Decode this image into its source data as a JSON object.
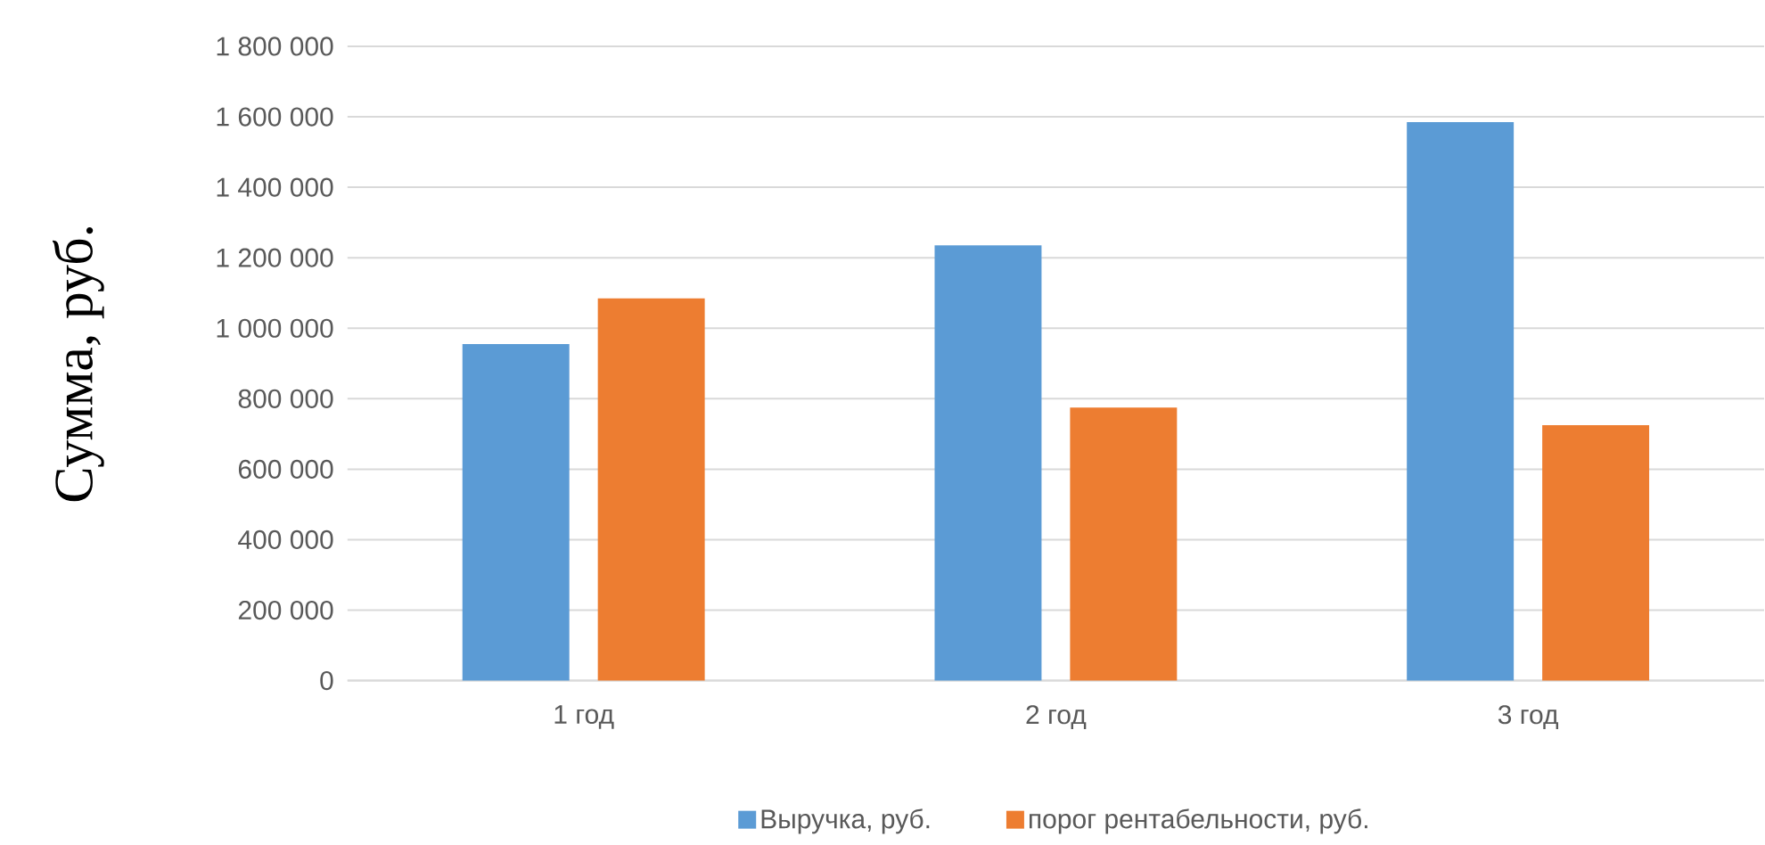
{
  "chart_data": {
    "type": "bar",
    "ylabel": "Сумма, руб.",
    "categories": [
      "1 год",
      "2 год",
      "3 год"
    ],
    "series": [
      {
        "name": "Выручка, руб.",
        "color": "#5b9bd5",
        "values": [
          955000,
          1235000,
          1585000
        ]
      },
      {
        "name": "порог рентабельности, руб.",
        "color": "#ed7d31",
        "values": [
          1085000,
          775000,
          725000
        ]
      }
    ],
    "ylim": [
      0,
      1800000
    ],
    "yticks": [
      {
        "value": 0,
        "label": "0"
      },
      {
        "value": 200000,
        "label": "200 000"
      },
      {
        "value": 400000,
        "label": "400 000"
      },
      {
        "value": 600000,
        "label": "600 000"
      },
      {
        "value": 800000,
        "label": "800 000"
      },
      {
        "value": 1000000,
        "label": "1 000 000"
      },
      {
        "value": 1200000,
        "label": "1 200 000"
      },
      {
        "value": 1400000,
        "label": "1 400 000"
      },
      {
        "value": 1600000,
        "label": "1 600 000"
      },
      {
        "value": 1800000,
        "label": "1 800 000"
      }
    ],
    "grid": "y",
    "legend": "bottom"
  }
}
